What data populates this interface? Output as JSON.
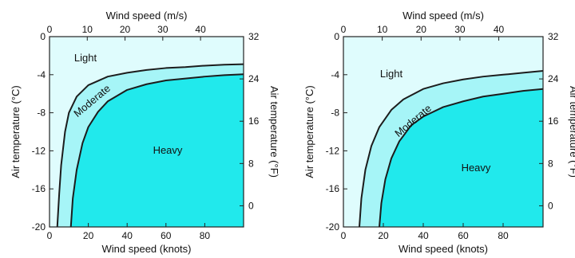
{
  "chart_data": [
    {
      "type": "area",
      "region_labels": [
        "Light",
        "Moderate",
        "Heavy"
      ],
      "colors": {
        "light": "#dffcfd",
        "moderate": "#a6f5f7",
        "heavy": "#21e9ec"
      },
      "x_bottom": {
        "label": "Wind speed (knots)",
        "range": [
          0,
          100
        ],
        "ticks": [
          "0",
          "20",
          "40",
          "60",
          "80"
        ],
        "tick_values": [
          0,
          20,
          40,
          60,
          80
        ]
      },
      "x_top": {
        "label": "Wind speed (m/s)",
        "range": [
          0,
          51.4
        ],
        "ticks": [
          "0",
          "10",
          "20",
          "30",
          "40"
        ],
        "tick_values": [
          0,
          10,
          20,
          30,
          40
        ]
      },
      "y_left": {
        "label": "Air temperature (°C)",
        "range": [
          -20,
          0
        ],
        "ticks": [
          "0",
          "-4",
          "-8",
          "-12",
          "-16",
          "-20"
        ],
        "tick_values": [
          0,
          -4,
          -8,
          -12,
          -16,
          -20
        ]
      },
      "y_right": {
        "label": "Air temperature (°F)",
        "range": [
          -4,
          32
        ],
        "ticks": [
          "32",
          "24",
          "16",
          "8",
          "0"
        ],
        "tick_values": [
          32,
          24,
          16,
          8,
          0
        ]
      },
      "boundaries": [
        {
          "separates": "Light / Moderate",
          "x": [
            4,
            5,
            6,
            8,
            10,
            14,
            20,
            30,
            40,
            50,
            60,
            70,
            80,
            90,
            100
          ],
          "y": [
            -20,
            -16.5,
            -13.5,
            -10,
            -8,
            -6.3,
            -5.1,
            -4.2,
            -3.8,
            -3.5,
            -3.3,
            -3.2,
            -3.05,
            -2.95,
            -2.9
          ]
        },
        {
          "separates": "Moderate / Heavy",
          "x": [
            11,
            12,
            14,
            17,
            20,
            25,
            30,
            40,
            50,
            60,
            70,
            80,
            90,
            100
          ],
          "y": [
            -20,
            -17,
            -14,
            -11.2,
            -9.5,
            -7.9,
            -6.8,
            -5.6,
            -5,
            -4.6,
            -4.4,
            -4.2,
            -4.05,
            -3.95
          ]
        }
      ]
    },
    {
      "type": "area",
      "region_labels": [
        "Light",
        "Moderate",
        "Heavy"
      ],
      "colors": {
        "light": "#dffcfd",
        "moderate": "#a6f5f7",
        "heavy": "#21e9ec"
      },
      "x_bottom": {
        "label": "Wind speed (knots)",
        "range": [
          0,
          100
        ],
        "ticks": [
          "0",
          "20",
          "40",
          "60",
          "80"
        ],
        "tick_values": [
          0,
          20,
          40,
          60,
          80
        ]
      },
      "x_top": {
        "label": "Wind speed (m/s)",
        "range": [
          0,
          51.4
        ],
        "ticks": [
          "0",
          "10",
          "20",
          "30",
          "40"
        ],
        "tick_values": [
          0,
          10,
          20,
          30,
          40
        ]
      },
      "y_left": {
        "label": "Air temperature (°C)",
        "range": [
          -20,
          0
        ],
        "ticks": [
          "0",
          "-4",
          "-8",
          "-12",
          "-16",
          "-20"
        ],
        "tick_values": [
          0,
          -4,
          -8,
          -12,
          -16,
          -20
        ]
      },
      "y_right": {
        "label": "Air temperature (°F)",
        "range": [
          -4,
          32
        ],
        "ticks": [
          "32",
          "24",
          "16",
          "8",
          "0"
        ],
        "tick_values": [
          32,
          24,
          16,
          8,
          0
        ]
      },
      "boundaries": [
        {
          "separates": "Light / Moderate",
          "x": [
            8,
            9,
            11,
            14,
            18,
            24,
            30,
            40,
            50,
            60,
            70,
            80,
            90,
            100
          ],
          "y": [
            -20,
            -17,
            -14,
            -11.5,
            -9.5,
            -7.7,
            -6.6,
            -5.5,
            -4.9,
            -4.5,
            -4.2,
            -4,
            -3.8,
            -3.6
          ]
        },
        {
          "separates": "Moderate / Heavy",
          "x": [
            18,
            19,
            21,
            24,
            28,
            34,
            40,
            50,
            60,
            70,
            80,
            90,
            100
          ],
          "y": [
            -20,
            -17.5,
            -15,
            -12.8,
            -11,
            -9.3,
            -8.4,
            -7.4,
            -6.8,
            -6.3,
            -6,
            -5.7,
            -5.5
          ]
        }
      ]
    }
  ]
}
